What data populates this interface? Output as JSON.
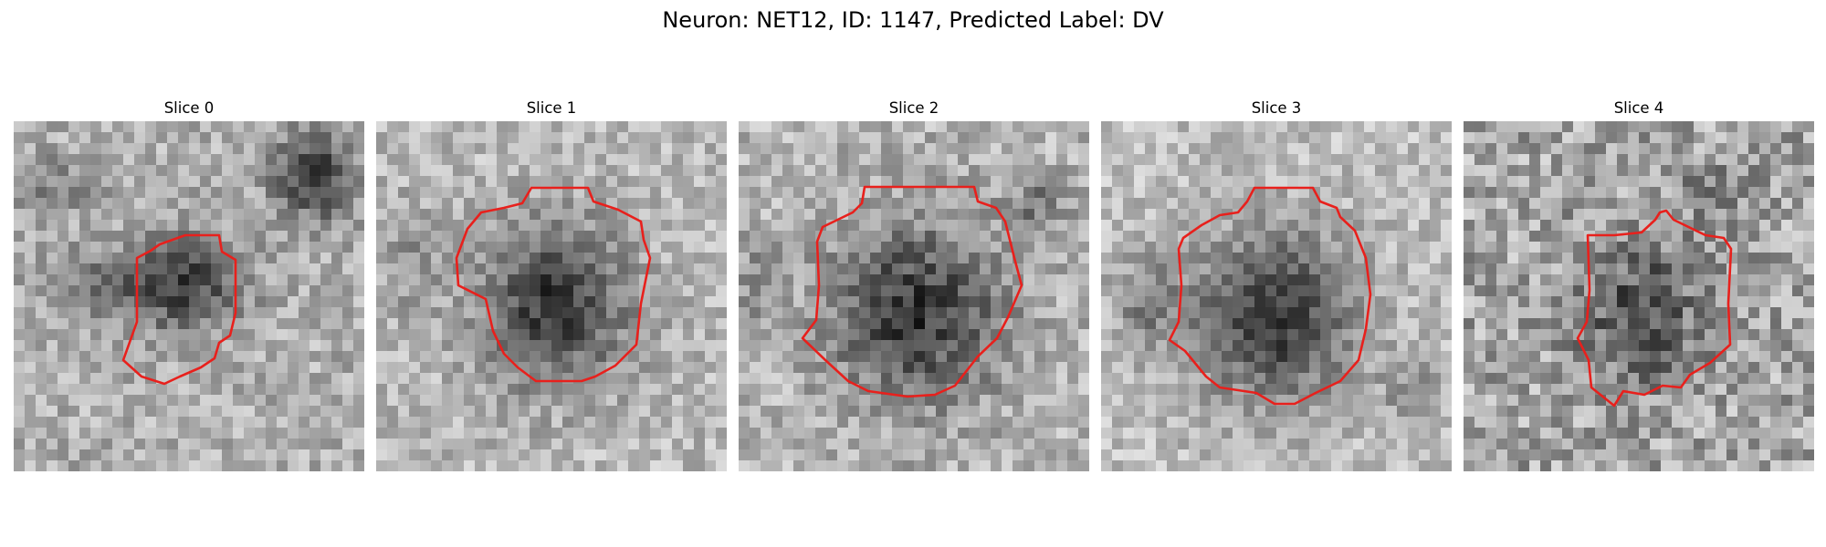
{
  "figure": {
    "title": "Neuron: NET12, ID: 1147, Predicted Label: DV"
  },
  "panels": [
    {
      "title": "Slice 0"
    },
    {
      "title": "Slice 1"
    },
    {
      "title": "Slice 2"
    },
    {
      "title": "Slice 3"
    },
    {
      "title": "Slice 4"
    }
  ],
  "colors": {
    "contour": "#e8201c",
    "background": "#ffffff"
  }
}
